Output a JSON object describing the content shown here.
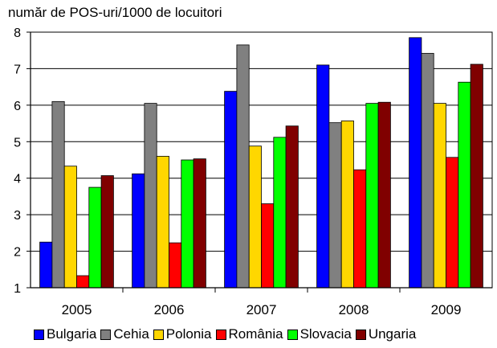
{
  "chart_data": {
    "type": "bar",
    "title": "număr de POS-uri/1000 de locuitori",
    "xlabel": "",
    "ylabel": "",
    "categories": [
      "2005",
      "2006",
      "2007",
      "2008",
      "2009"
    ],
    "ylim": [
      1,
      8
    ],
    "yticks": [
      1,
      2,
      3,
      4,
      5,
      6,
      7,
      8
    ],
    "grid": true,
    "legend_position": "bottom",
    "series": [
      {
        "name": "Bulgaria",
        "color": "#0000ff",
        "values": [
          2.25,
          4.12,
          6.38,
          7.1,
          7.85
        ]
      },
      {
        "name": "Cehia",
        "color": "#808080",
        "values": [
          6.1,
          6.05,
          7.65,
          5.52,
          7.42
        ]
      },
      {
        "name": "Polonia",
        "color": "#ffd700",
        "values": [
          4.33,
          4.6,
          4.88,
          5.57,
          6.05
        ]
      },
      {
        "name": "România",
        "color": "#ff0000",
        "values": [
          1.33,
          2.23,
          3.3,
          4.23,
          4.57
        ]
      },
      {
        "name": "Slovacia",
        "color": "#00ff00",
        "values": [
          3.75,
          4.5,
          5.12,
          6.05,
          6.63
        ]
      },
      {
        "name": "Ungaria",
        "color": "#800000",
        "values": [
          4.07,
          4.53,
          5.43,
          6.08,
          7.12
        ]
      }
    ]
  }
}
